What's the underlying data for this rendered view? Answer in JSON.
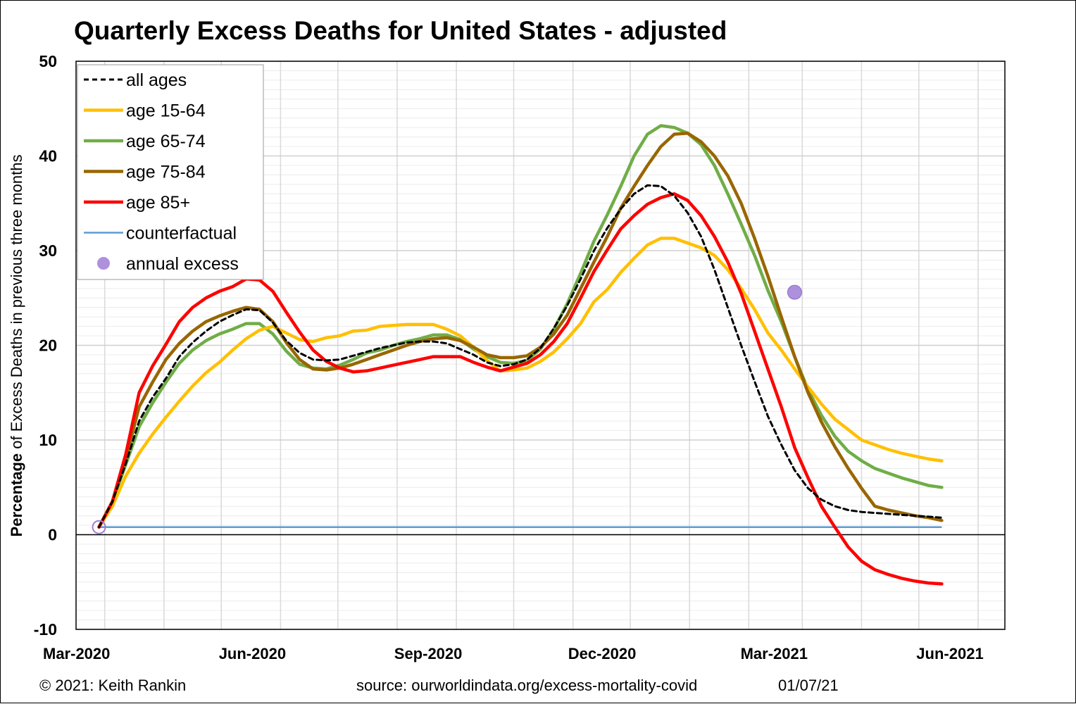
{
  "chart_data": {
    "type": "line",
    "title": "Quarterly Excess Deaths for United States - adjusted",
    "ylabel_bold": "Percentage",
    "ylabel_rest": " of Excess Deaths in previous three months",
    "ylim": [
      -10,
      50
    ],
    "yticks": [
      -10,
      0,
      10,
      20,
      30,
      40,
      50
    ],
    "ytick_labels": [
      "-10",
      "0",
      "10",
      "20",
      "30",
      "40",
      "50"
    ],
    "xlim": [
      "2020-02-15",
      "2021-06-15"
    ],
    "xticks": [
      "2020-03-01",
      "2020-06-01",
      "2020-09-01",
      "2020-12-01",
      "2021-03-01",
      "2021-06-01"
    ],
    "xtick_labels": [
      "Mar-2020",
      "Jun-2020",
      "Sep-2020",
      "Dec-2020",
      "Mar-2021",
      "Jun-2021"
    ],
    "grid": true,
    "legend_position": "top-left",
    "x": [
      "2020-02-27",
      "2020-03-05",
      "2020-03-12",
      "2020-03-19",
      "2020-03-26",
      "2020-04-02",
      "2020-04-09",
      "2020-04-16",
      "2020-04-23",
      "2020-04-30",
      "2020-05-07",
      "2020-05-14",
      "2020-05-21",
      "2020-05-28",
      "2020-06-04",
      "2020-06-11",
      "2020-06-18",
      "2020-06-25",
      "2020-07-02",
      "2020-07-09",
      "2020-07-16",
      "2020-07-23",
      "2020-07-30",
      "2020-08-06",
      "2020-08-13",
      "2020-08-20",
      "2020-08-27",
      "2020-09-03",
      "2020-09-10",
      "2020-09-17",
      "2020-09-24",
      "2020-10-01",
      "2020-10-08",
      "2020-10-15",
      "2020-10-22",
      "2020-10-29",
      "2020-11-05",
      "2020-11-12",
      "2020-11-19",
      "2020-11-26",
      "2020-12-03",
      "2020-12-10",
      "2020-12-17",
      "2020-12-24",
      "2020-12-31",
      "2021-01-07",
      "2021-01-14",
      "2021-01-21",
      "2021-01-28",
      "2021-02-04",
      "2021-02-11",
      "2021-02-18",
      "2021-02-25",
      "2021-03-04",
      "2021-03-11",
      "2021-03-18",
      "2021-03-25",
      "2021-04-01",
      "2021-04-08",
      "2021-04-15",
      "2021-04-22",
      "2021-04-29",
      "2021-05-06",
      "2021-05-13"
    ],
    "series": [
      {
        "name": "all ages",
        "color": "#000000",
        "dash": true,
        "values": [
          0.8,
          3.5,
          7.5,
          12.0,
          14.5,
          16.5,
          18.8,
          20.3,
          21.5,
          22.5,
          23.2,
          23.8,
          23.7,
          22.4,
          20.5,
          19.2,
          18.5,
          18.4,
          18.5,
          18.9,
          19.3,
          19.7,
          20.0,
          20.3,
          20.4,
          20.4,
          20.2,
          19.6,
          19.0,
          18.2,
          17.8,
          18.0,
          18.5,
          19.7,
          21.8,
          24.2,
          27.0,
          30.0,
          32.4,
          34.4,
          36.0,
          36.9,
          36.8,
          35.8,
          34.0,
          31.5,
          28.0,
          24.0,
          20.0,
          16.2,
          12.5,
          9.5,
          6.8,
          4.9,
          3.7,
          3.0,
          2.6,
          2.4,
          2.3,
          2.2,
          2.1,
          2.0,
          1.9,
          1.8
        ]
      },
      {
        "name": "age 15-64",
        "color": "#FFC000",
        "dash": false,
        "values": [
          0.8,
          3.0,
          6.2,
          8.6,
          10.6,
          12.4,
          14.1,
          15.7,
          17.1,
          18.2,
          19.5,
          20.7,
          21.6,
          22.0,
          21.3,
          20.6,
          20.4,
          20.8,
          21.0,
          21.5,
          21.6,
          22.0,
          22.1,
          22.2,
          22.2,
          22.2,
          21.7,
          21.0,
          19.8,
          18.4,
          17.3,
          17.4,
          17.6,
          18.3,
          19.3,
          20.7,
          22.3,
          24.6,
          25.9,
          27.7,
          29.2,
          30.6,
          31.3,
          31.3,
          30.8,
          30.3,
          29.5,
          28.0,
          26.0,
          23.8,
          21.3,
          19.5,
          17.5,
          15.6,
          13.8,
          12.2,
          11.1,
          10.0,
          9.5,
          9.0,
          8.6,
          8.3,
          8.0,
          7.8
        ]
      },
      {
        "name": "age 65-74",
        "color": "#70AD47",
        "dash": false,
        "values": [
          0.8,
          3.5,
          7.4,
          11.4,
          13.9,
          16.1,
          18.1,
          19.5,
          20.5,
          21.2,
          21.7,
          22.3,
          22.3,
          21.2,
          19.4,
          18.0,
          17.6,
          17.5,
          17.9,
          18.5,
          19.2,
          19.5,
          20.0,
          20.4,
          20.7,
          21.1,
          21.1,
          20.6,
          19.6,
          18.8,
          18.2,
          18.1,
          18.4,
          19.6,
          21.7,
          24.4,
          27.6,
          31.0,
          33.8,
          36.8,
          40.0,
          42.3,
          43.2,
          43.0,
          42.4,
          41.2,
          39.0,
          36.0,
          32.8,
          29.5,
          25.8,
          22.5,
          18.8,
          15.3,
          12.6,
          10.4,
          8.8,
          7.8,
          7.0,
          6.5,
          6.0,
          5.6,
          5.2,
          5.0
        ]
      },
      {
        "name": "age 75-84",
        "color": "#996600",
        "dash": false,
        "values": [
          0.8,
          3.5,
          8.0,
          13.5,
          16.1,
          18.5,
          20.2,
          21.5,
          22.5,
          23.1,
          23.6,
          24.0,
          23.8,
          22.5,
          20.3,
          18.5,
          17.5,
          17.4,
          17.6,
          18.0,
          18.5,
          19.0,
          19.5,
          20.0,
          20.4,
          20.7,
          20.8,
          20.5,
          19.8,
          19.0,
          18.7,
          18.7,
          18.9,
          19.8,
          21.2,
          23.2,
          26.0,
          28.8,
          31.5,
          34.5,
          36.8,
          39.0,
          41.0,
          42.3,
          42.4,
          41.5,
          40.0,
          37.9,
          35.0,
          31.3,
          27.3,
          23.0,
          18.8,
          15.0,
          11.9,
          9.3,
          7.0,
          4.9,
          3.0,
          2.6,
          2.3,
          2.0,
          1.8,
          1.5
        ]
      },
      {
        "name": "age 85+",
        "color": "#FF0000",
        "dash": false,
        "values": [
          0.8,
          3.5,
          8.5,
          15.0,
          17.8,
          20.1,
          22.5,
          24.0,
          25.0,
          25.7,
          26.2,
          27.0,
          26.9,
          25.7,
          23.5,
          21.4,
          19.5,
          18.3,
          17.6,
          17.2,
          17.3,
          17.6,
          17.9,
          18.2,
          18.5,
          18.8,
          18.8,
          18.8,
          18.2,
          17.7,
          17.3,
          17.7,
          18.1,
          19.0,
          20.4,
          22.3,
          25.0,
          27.8,
          30.1,
          32.3,
          33.7,
          34.9,
          35.6,
          36.0,
          35.3,
          33.7,
          31.5,
          28.8,
          25.5,
          21.5,
          17.5,
          13.5,
          9.2,
          6.0,
          3.0,
          0.8,
          -1.3,
          -2.8,
          -3.7,
          -4.2,
          -4.6,
          -4.9,
          -5.1,
          -5.2
        ]
      }
    ],
    "counterfactual": {
      "name": "counterfactual",
      "color": "#5B9BD5",
      "y": 0.8,
      "x_start": "2020-02-27",
      "x_end": "2021-05-13"
    },
    "annual_excess": {
      "name": "annual excess",
      "color": "#A07ED6",
      "points": [
        {
          "x": "2020-02-27",
          "y": 0.8
        },
        {
          "x": "2021-02-25",
          "y": 25.6
        }
      ]
    }
  },
  "footer": {
    "copyright": "© 2021: Keith Rankin",
    "source": "source: ourworldindata.org/excess-mortality-covid",
    "date": "01/07/21"
  }
}
